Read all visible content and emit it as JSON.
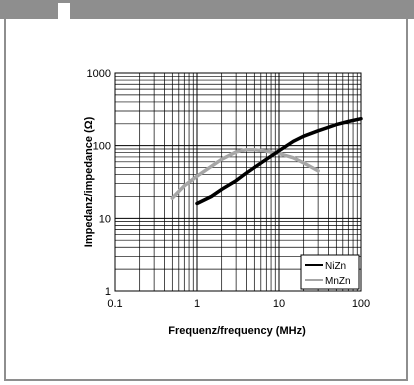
{
  "chart_data": {
    "type": "line",
    "xscale": "log",
    "yscale": "log",
    "xlim": [
      0.1,
      100
    ],
    "ylim": [
      1,
      1000
    ],
    "xlabel": "Frequenz/frequency (MHz)",
    "ylabel": "Impedanz/impedance (Ω)",
    "x_ticks": [
      "0.1",
      "1",
      "10",
      "100"
    ],
    "y_ticks": [
      "1",
      "10",
      "100",
      "1000"
    ],
    "grid": true,
    "legend_position": "bottom-right",
    "series": [
      {
        "name": "NiZn",
        "color": "#000000",
        "x": [
          1,
          1.5,
          2,
          3,
          4,
          5,
          7,
          10,
          15,
          20,
          30,
          50,
          70,
          100
        ],
        "y": [
          16,
          20,
          25,
          33,
          42,
          50,
          65,
          85,
          115,
          135,
          160,
          195,
          215,
          235
        ]
      },
      {
        "name": "MnZn",
        "color": "#a6a6a6",
        "x": [
          0.5,
          0.7,
          1,
          1.5,
          2,
          3,
          4,
          5,
          7,
          10,
          15,
          20,
          30
        ],
        "y": [
          19,
          28,
          38,
          52,
          65,
          82,
          88,
          88,
          84,
          78,
          68,
          58,
          45
        ]
      }
    ]
  }
}
